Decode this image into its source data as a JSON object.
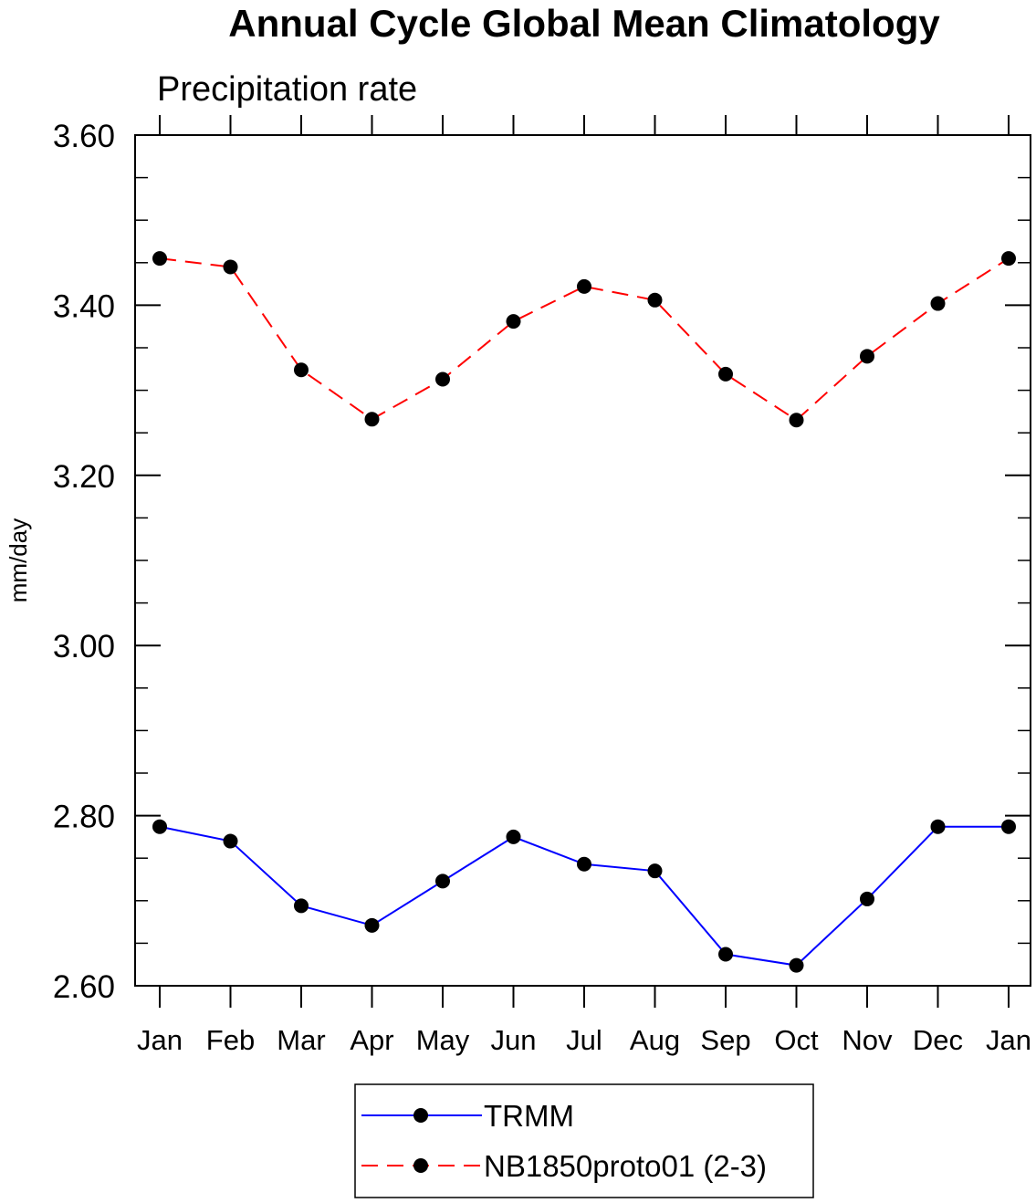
{
  "chart_data": {
    "type": "line",
    "title": "Annual Cycle Global Mean Climatology",
    "subtitle": "Precipitation rate",
    "xlabel": "",
    "ylabel": "mm/day",
    "categories": [
      "Jan",
      "Feb",
      "Mar",
      "Apr",
      "May",
      "Jun",
      "Jul",
      "Aug",
      "Sep",
      "Oct",
      "Nov",
      "Dec",
      "Jan"
    ],
    "ylim": [
      2.6,
      3.6
    ],
    "yticks": [
      2.6,
      2.8,
      3.0,
      3.2,
      3.4,
      3.6
    ],
    "ytick_labels": [
      "2.60",
      "2.80",
      "3.00",
      "3.20",
      "3.40",
      "3.60"
    ],
    "grid": false,
    "legend_position": "bottom-center",
    "series": [
      {
        "name": "TRMM",
        "color": "#0000ff",
        "style": "solid",
        "marker": "circle",
        "values": [
          2.787,
          2.77,
          2.694,
          2.671,
          2.723,
          2.775,
          2.743,
          2.735,
          2.637,
          2.624,
          2.702,
          2.787,
          2.787
        ]
      },
      {
        "name": "NB1850proto01 (2-3)",
        "color": "#ff0000",
        "style": "dashed",
        "marker": "circle",
        "values": [
          3.455,
          3.445,
          3.324,
          3.266,
          3.313,
          3.381,
          3.422,
          3.406,
          3.319,
          3.265,
          3.34,
          3.402,
          3.455
        ]
      }
    ]
  }
}
